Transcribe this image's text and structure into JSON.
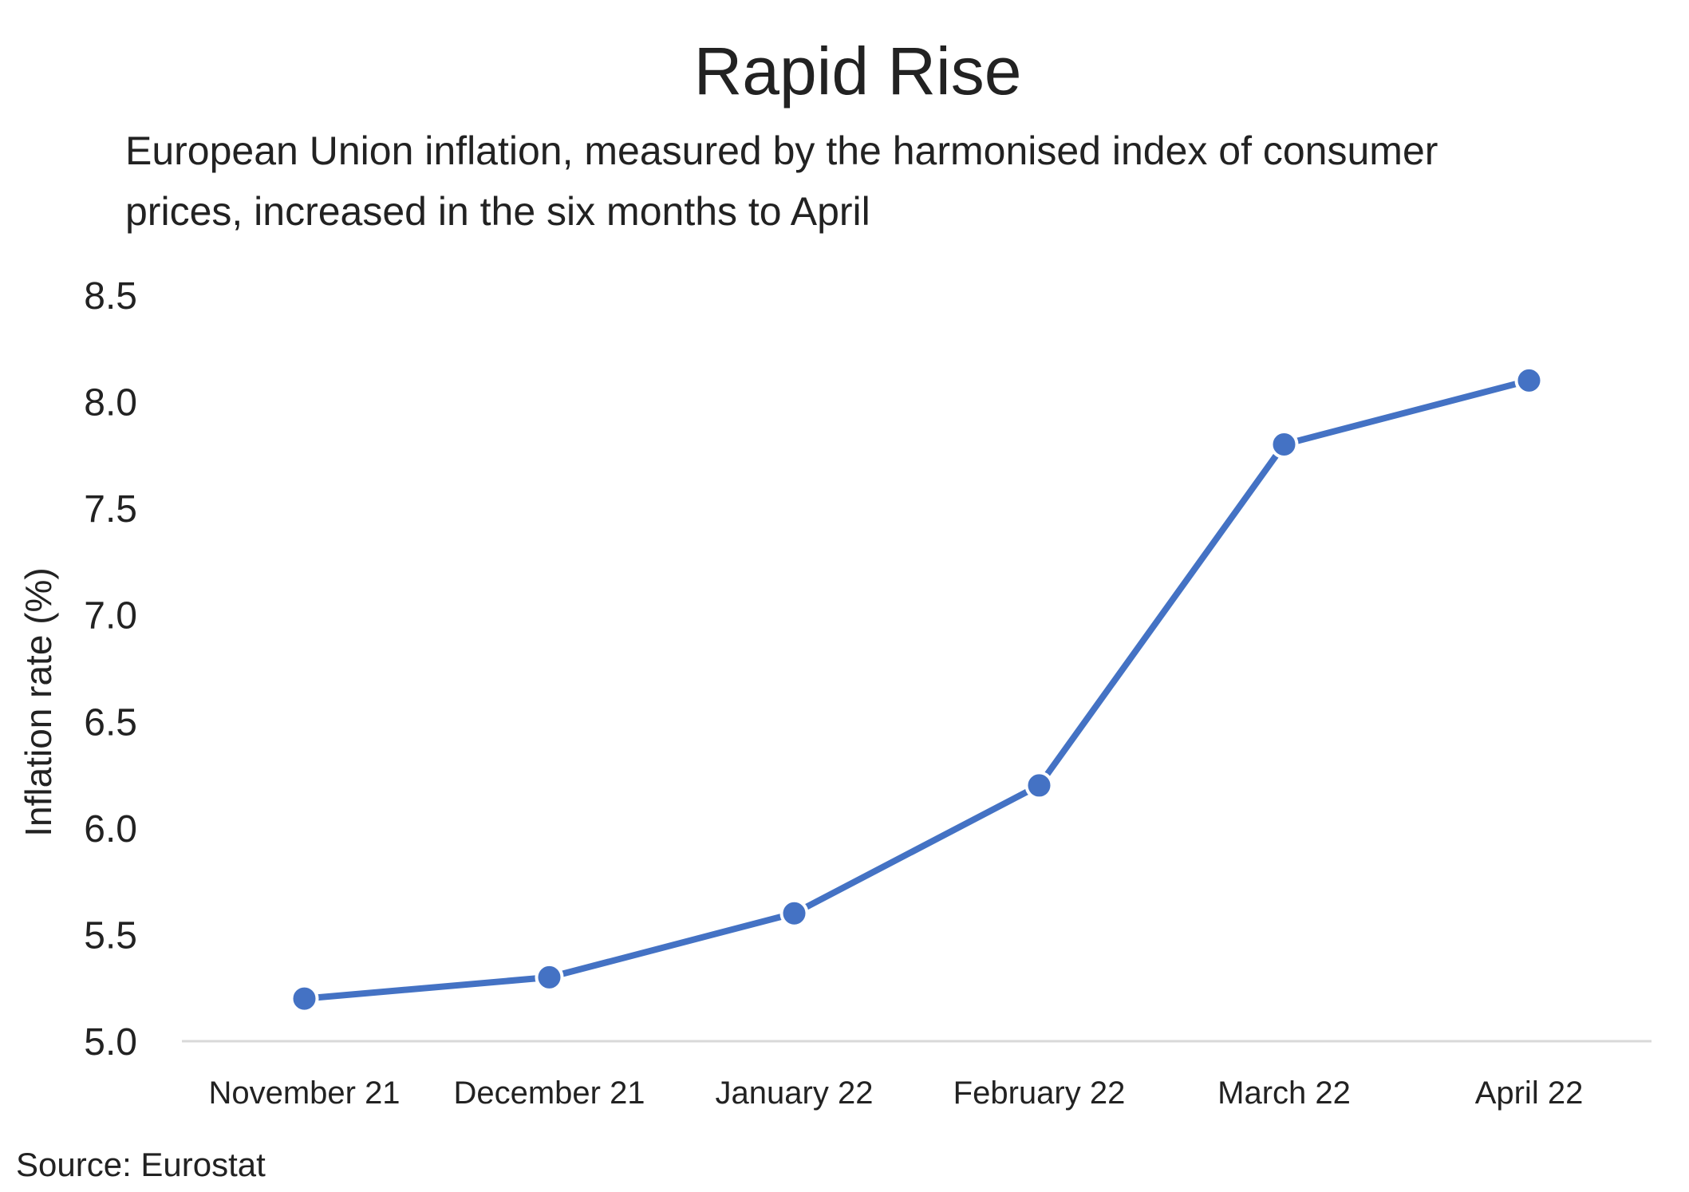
{
  "chart_data": {
    "type": "line",
    "title": "Rapid Rise",
    "subtitle_lines": [
      "European Union inflation, measured by the harmonised index of consumer",
      "prices, increased in the six months to April"
    ],
    "xlabel": "",
    "ylabel": "Inflation rate (%)",
    "categories": [
      "November 21",
      "December 21",
      "January 22",
      "February 22",
      "March 22",
      "April 22"
    ],
    "series": [
      {
        "values": [
          5.2,
          5.3,
          5.6,
          6.2,
          7.8,
          8.1
        ]
      }
    ],
    "ylim": [
      5.0,
      8.5
    ],
    "yticks": [
      "5.0",
      "5.5",
      "6.0",
      "6.5",
      "7.0",
      "7.5",
      "8.0",
      "8.5"
    ],
    "grid": false,
    "legend": "none",
    "line_color": "#4472C4",
    "source": "Source: Eurostat"
  }
}
